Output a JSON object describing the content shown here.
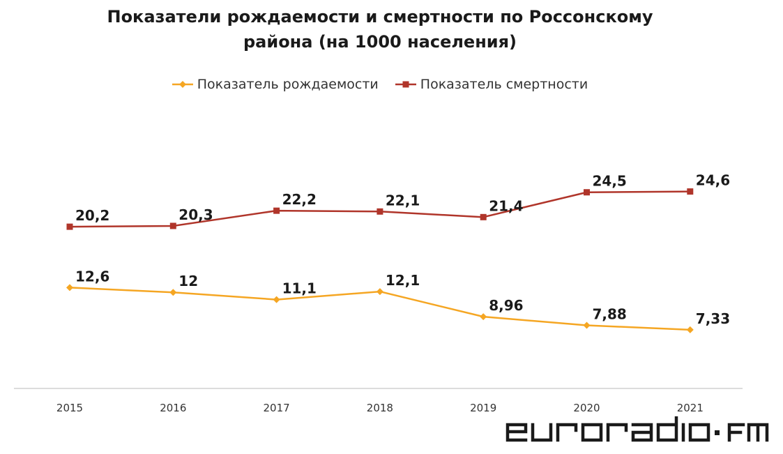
{
  "watermark": "eurorᴀdio·fm",
  "chart_data": {
    "type": "line",
    "title_line1": "Показатели рождаемости и смертности по Россонскому",
    "title_line2": "района (на 1000 населения)",
    "categories": [
      "2015",
      "2016",
      "2017",
      "2018",
      "2019",
      "2020",
      "2021"
    ],
    "series": [
      {
        "name": "Показатель рождаемости",
        "color": "#f5a623",
        "marker": "diamond",
        "values": [
          12.6,
          12,
          11.1,
          12.1,
          8.96,
          7.88,
          7.33
        ],
        "labels": [
          "12,6",
          "12",
          "11,1",
          "12,1",
          "8,96",
          "7,88",
          "7,33"
        ]
      },
      {
        "name": "Показатель смертности",
        "color": "#b0352a",
        "marker": "square",
        "values": [
          20.2,
          20.3,
          22.2,
          22.1,
          21.4,
          24.5,
          24.6
        ],
        "labels": [
          "20,2",
          "20,3",
          "22,2",
          "22,1",
          "21,4",
          "24,5",
          "24,6"
        ]
      }
    ],
    "xlabel": "",
    "ylabel": "",
    "ylim": [
      0,
      28
    ],
    "grid": false,
    "legend_position": "top"
  }
}
